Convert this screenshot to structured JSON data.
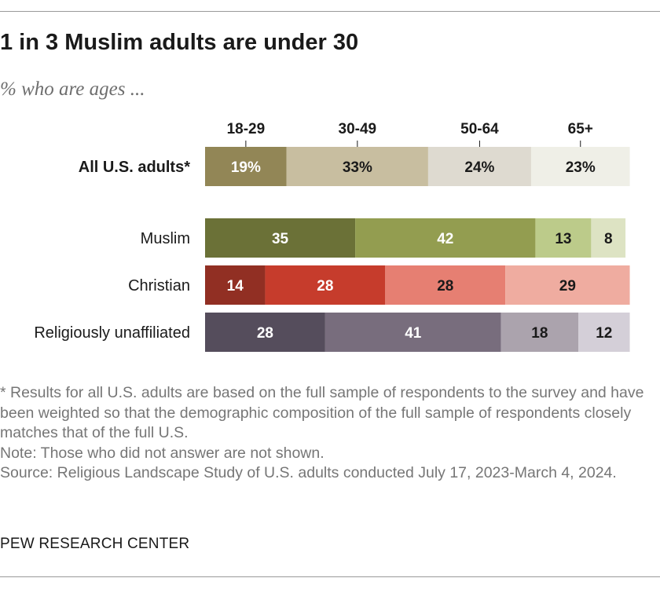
{
  "header": {
    "title": "1 in 3 Muslim adults are under 30",
    "subtitle": "% who are ages ..."
  },
  "chart_data": {
    "type": "bar",
    "stacked": true,
    "orientation": "horizontal",
    "title": "1 in 3 Muslim adults are under 30",
    "subtitle": "% who are ages ...",
    "legend_position": "top",
    "grid": false,
    "xlim": [
      0,
      100
    ],
    "categories": [
      "All U.S. adults*",
      "Muslim",
      "Christian",
      "Religiously unaffiliated"
    ],
    "series": [
      {
        "name": "18-29",
        "values": [
          19,
          35,
          14,
          28
        ]
      },
      {
        "name": "30-49",
        "values": [
          33,
          42,
          28,
          41
        ]
      },
      {
        "name": "50-64",
        "values": [
          24,
          13,
          28,
          18
        ]
      },
      {
        "name": "65+",
        "values": [
          23,
          8,
          29,
          12
        ]
      }
    ],
    "data_labels": [
      [
        "19%",
        "33%",
        "24%",
        "23%"
      ],
      [
        "35",
        "42",
        "13",
        "8"
      ],
      [
        "14",
        "28",
        "28",
        "29"
      ],
      [
        "28",
        "41",
        "18",
        "12"
      ]
    ],
    "colors": [
      [
        "#928656",
        "#c8bea0",
        "#dedad0",
        "#efefe7"
      ],
      [
        "#6b7137",
        "#939d50",
        "#bccb8a",
        "#dde3c3"
      ],
      [
        "#912f23",
        "#c63c2c",
        "#e67f72",
        "#efaca0"
      ],
      [
        "#554d5c",
        "#786d7d",
        "#aba3ad",
        "#d4cfd8"
      ]
    ],
    "label_colors": [
      [
        "#ffffff",
        "#1a1a1a",
        "#1a1a1a",
        "#1a1a1a"
      ],
      [
        "#ffffff",
        "#ffffff",
        "#1a1a1a",
        "#1a1a1a"
      ],
      [
        "#ffffff",
        "#ffffff",
        "#1a1a1a",
        "#1a1a1a"
      ],
      [
        "#ffffff",
        "#ffffff",
        "#1a1a1a",
        "#1a1a1a"
      ]
    ],
    "bold_categories": [
      "All U.S. adults*"
    ]
  },
  "footnotes": {
    "asterisk": "* Results for all U.S. adults are based on the full sample of respondents to the survey and have been weighted so that the demographic composition of the full sample of respondents closely matches that of the full U.S.",
    "note": "Note: Those who did not answer are not shown.",
    "source": "Source: Religious Landscape Study of U.S. adults conducted July 17, 2023-March 4, 2024."
  },
  "branding": {
    "org": "PEW RESEARCH CENTER"
  }
}
